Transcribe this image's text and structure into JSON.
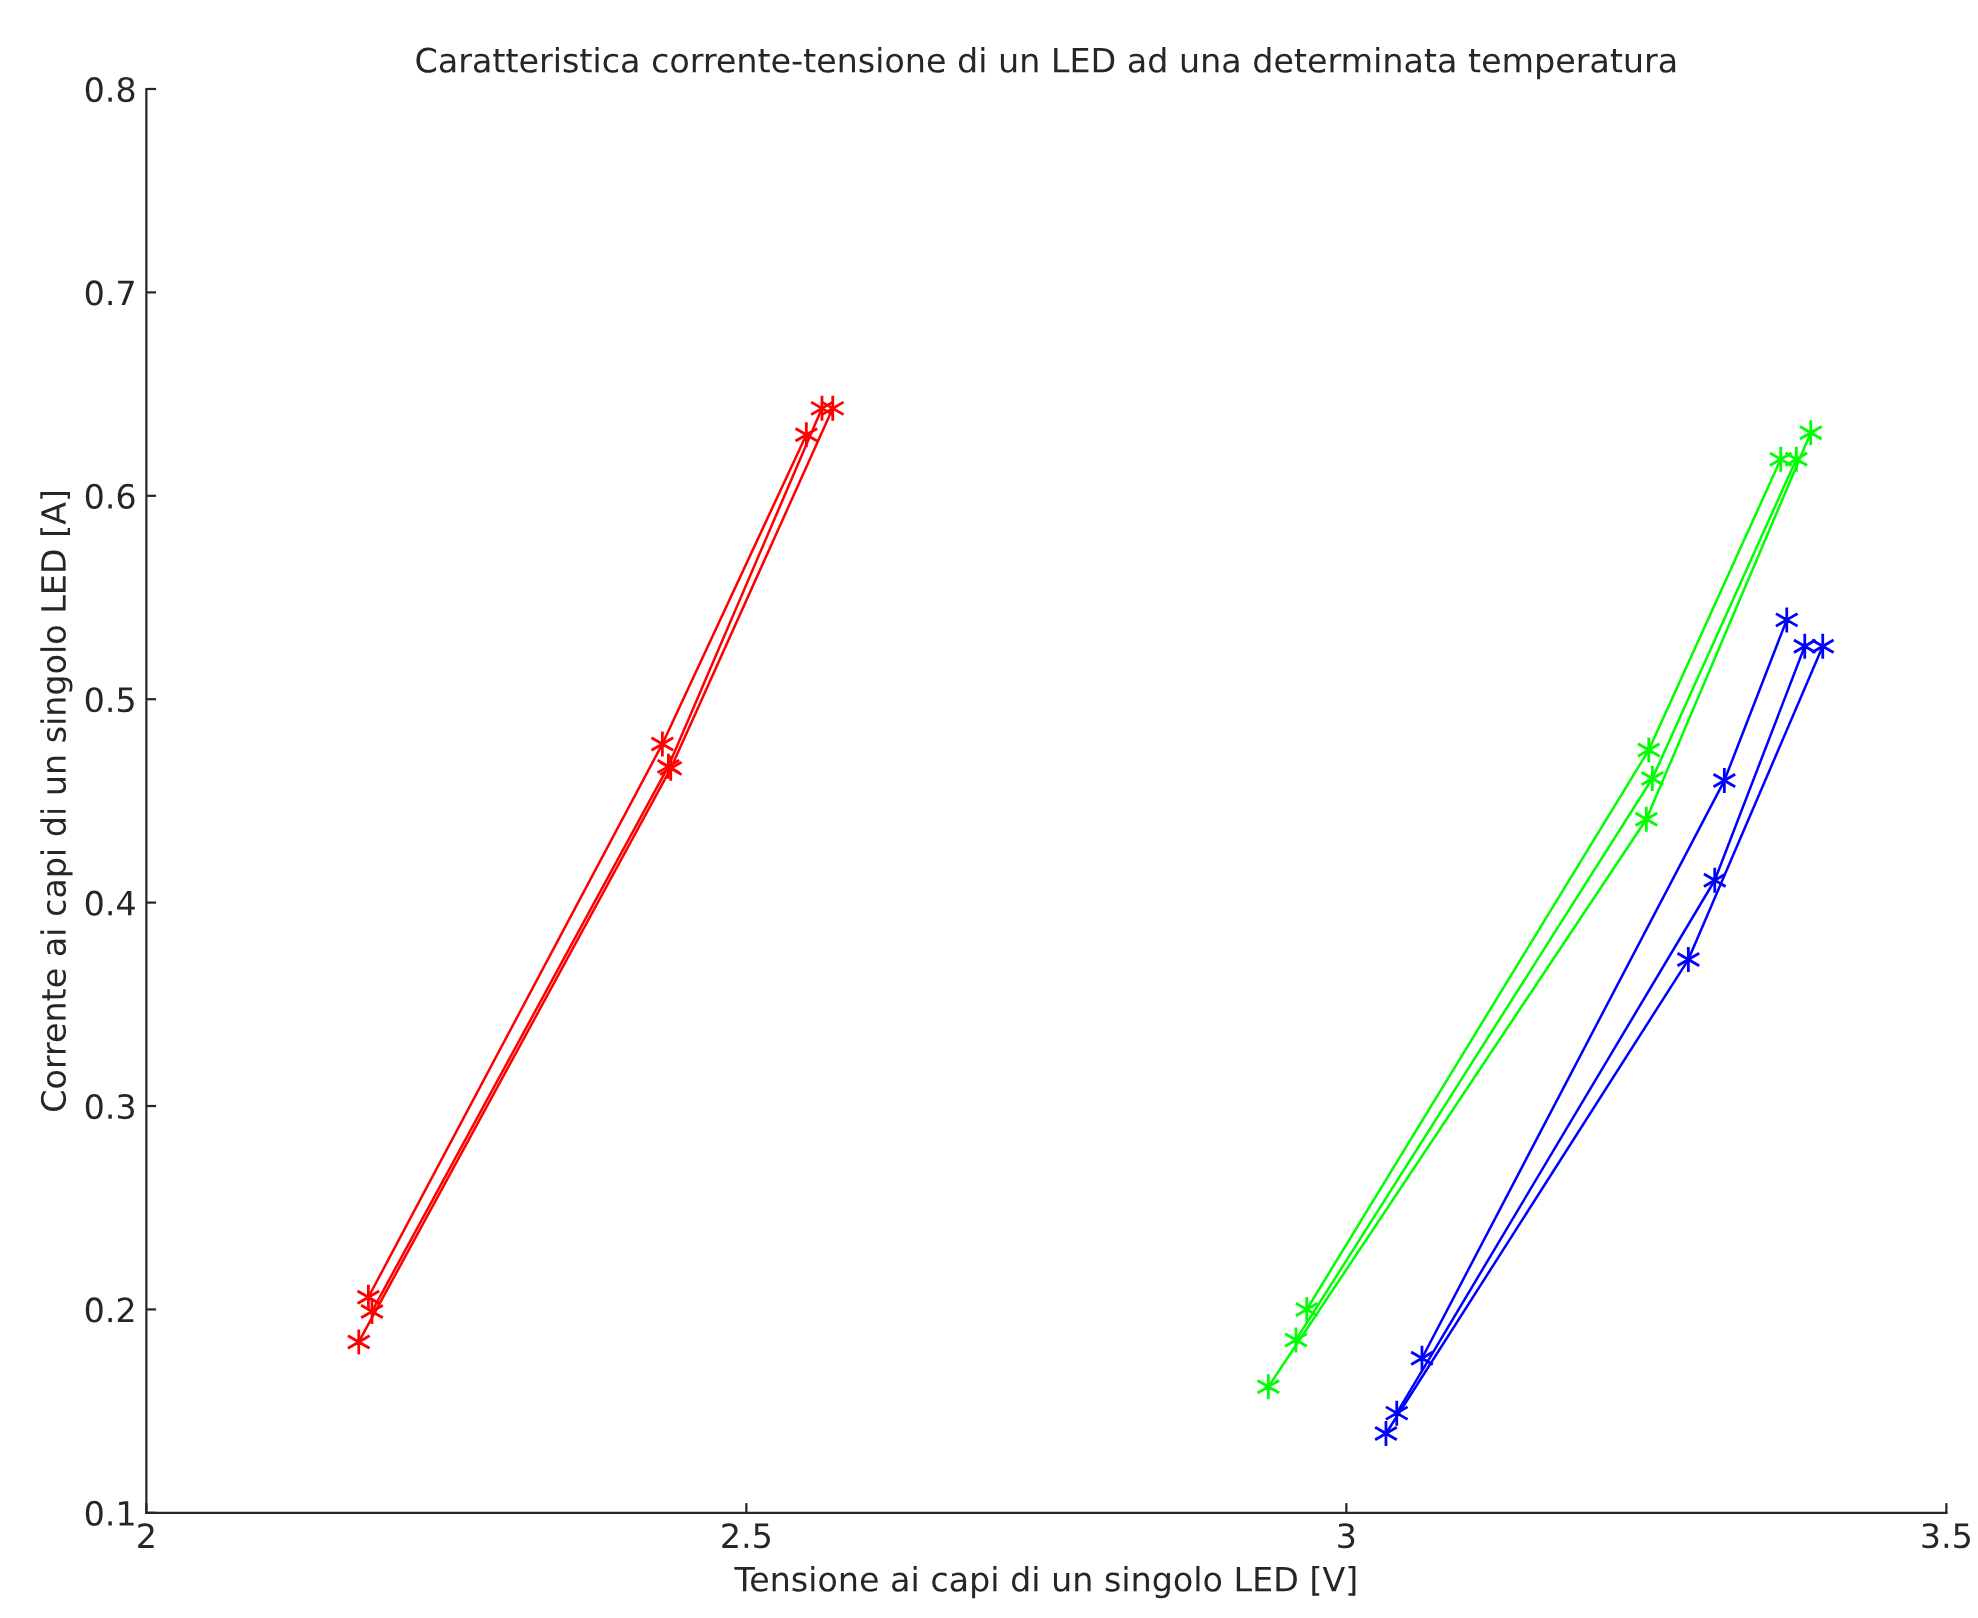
{
  "chart_data": {
    "type": "line",
    "title": "Caratteristica corrente-tensione di un LED ad una determinata temperatura",
    "xlabel": "Tensione ai capi di un singolo LED [V]",
    "ylabel": "Corrente ai capi di un singolo LED [A]",
    "xlim": [
      2,
      3.5
    ],
    "ylim": [
      0.1,
      0.8
    ],
    "xticks": [
      2,
      2.5,
      3,
      3.5
    ],
    "yticks": [
      0.1,
      0.2,
      0.3,
      0.4,
      0.5,
      0.6,
      0.7,
      0.8
    ],
    "grid": false,
    "legend": false,
    "marker": "cross",
    "line_style": "solid",
    "series": [
      {
        "color": "#ff0000",
        "x": [
          2.185,
          2.43,
          2.55
        ],
        "values": [
          0.206,
          0.478,
          0.63
        ]
      },
      {
        "color": "#ff0000",
        "x": [
          2.188,
          2.435,
          2.563
        ],
        "values": [
          0.199,
          0.467,
          0.643
        ]
      },
      {
        "color": "#ff0000",
        "x": [
          2.177,
          2.437,
          2.572
        ],
        "values": [
          0.184,
          0.466,
          0.643
        ]
      },
      {
        "color": "#00ff00",
        "x": [
          2.967,
          3.252,
          3.362
        ],
        "values": [
          0.2,
          0.475,
          0.618
        ]
      },
      {
        "color": "#00ff00",
        "x": [
          2.958,
          3.255,
          3.375
        ],
        "values": [
          0.185,
          0.461,
          0.618
        ]
      },
      {
        "color": "#00ff00",
        "x": [
          2.935,
          3.25,
          3.387
        ],
        "values": [
          0.162,
          0.441,
          0.631
        ]
      },
      {
        "color": "#0000ff",
        "x": [
          3.063,
          3.315,
          3.367
        ],
        "values": [
          0.176,
          0.46,
          0.539
        ]
      },
      {
        "color": "#0000ff",
        "x": [
          3.042,
          3.307,
          3.382
        ],
        "values": [
          0.149,
          0.411,
          0.526
        ]
      },
      {
        "color": "#0000ff",
        "x": [
          3.033,
          3.285,
          3.397
        ],
        "values": [
          0.139,
          0.372,
          0.526
        ]
      }
    ]
  }
}
